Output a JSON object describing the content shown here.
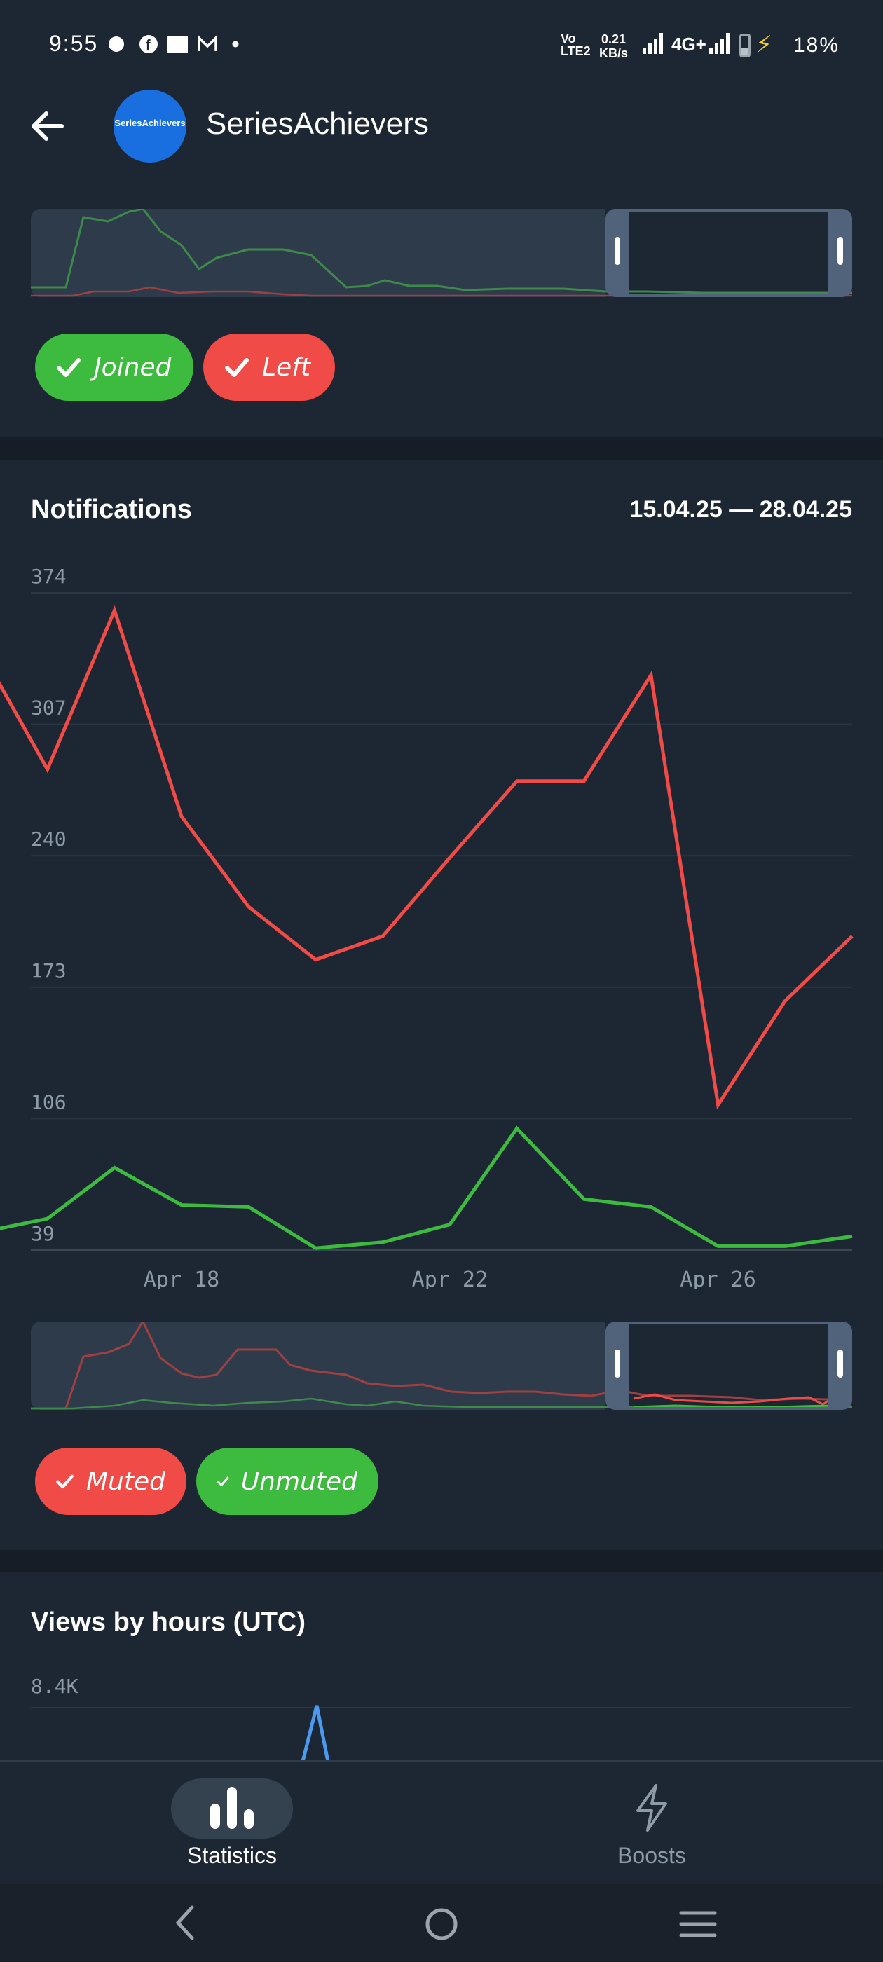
{
  "status_bar": {
    "time": "9:55",
    "network_label": "Vo LTE2",
    "speed_value": "0.21",
    "speed_unit": "KB/s",
    "network_type": "4G+",
    "battery": "18%"
  },
  "header": {
    "title": "SeriesAchievers",
    "avatar_text": "SeriesAchievers"
  },
  "chips_top": [
    {
      "label": "Joined",
      "color": "#3dbb3f"
    },
    {
      "label": "Left",
      "color": "#f04b46"
    }
  ],
  "notifications": {
    "title": "Notifications",
    "date_range": "15.04.25 — 28.04.25",
    "y_ticks": [
      "374",
      "307",
      "240",
      "173",
      "106",
      "39"
    ],
    "x_ticks": [
      "Apr 18",
      "Apr 22",
      "Apr 26"
    ]
  },
  "chart_data": [
    {
      "type": "line",
      "title": "Notifications",
      "x": [
        "Apr 15",
        "Apr 16",
        "Apr 17",
        "Apr 18",
        "Apr 19",
        "Apr 20",
        "Apr 21",
        "Apr 22",
        "Apr 23",
        "Apr 24",
        "Apr 25",
        "Apr 26",
        "Apr 27",
        "Apr 28"
      ],
      "series": [
        {
          "name": "Muted",
          "color": "#f04b46",
          "values": [
            345,
            284,
            365,
            260,
            214,
            187,
            199,
            239,
            278,
            278,
            332,
            113,
            166,
            199
          ]
        },
        {
          "name": "Unmuted",
          "color": "#3dbb3f",
          "values": [
            48,
            55,
            81,
            62,
            61,
            40,
            43,
            52,
            101,
            65,
            61,
            41,
            41,
            46
          ]
        }
      ],
      "ylim": [
        39,
        374
      ],
      "y_ticks": [
        39,
        106,
        173,
        240,
        307,
        374
      ],
      "grid": true
    }
  ],
  "chips_middle": [
    {
      "label": "Muted",
      "color": "#f04b46"
    },
    {
      "label": "Unmuted",
      "color": "#3dbb3f"
    }
  ],
  "views": {
    "title": "Views by hours (UTC)",
    "y_top": "8.4K"
  },
  "bottom_nav": {
    "statistics": "Statistics",
    "boosts": "Boosts"
  }
}
